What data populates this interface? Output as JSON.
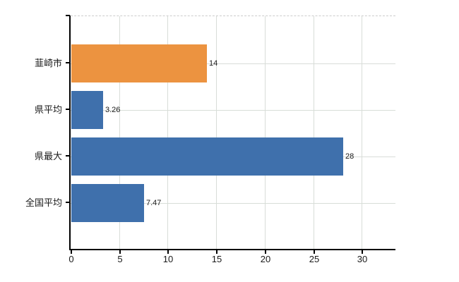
{
  "chart_data": {
    "type": "bar",
    "orientation": "horizontal",
    "title": "",
    "xlabel": "",
    "ylabel": "",
    "categories": [
      "韮崎市",
      "県平均",
      "県最大",
      "全国平均"
    ],
    "values": [
      14,
      3.26,
      28,
      7.47
    ],
    "value_labels": [
      "14",
      "3.26",
      "28",
      "7.47"
    ],
    "bar_colors": [
      "#EC9340",
      "#3F70AC",
      "#3F70AC",
      "#3F70AC"
    ],
    "x_ticks": [
      0,
      5,
      10,
      15,
      20,
      25,
      30
    ],
    "x_tick_labels": [
      "0",
      "5",
      "10",
      "15",
      "20",
      "25",
      "30"
    ],
    "xlim": [
      0,
      33.4
    ],
    "grid": true,
    "legend": false
  },
  "colors": {
    "highlight_bar": "#EC9340",
    "default_bar": "#3F70AC",
    "gridline": "#D8DDD8",
    "axis": "#000000",
    "text": "#1A1A1A",
    "background": "#FFFFFF",
    "plot_top_border": "#CCCCCC"
  }
}
